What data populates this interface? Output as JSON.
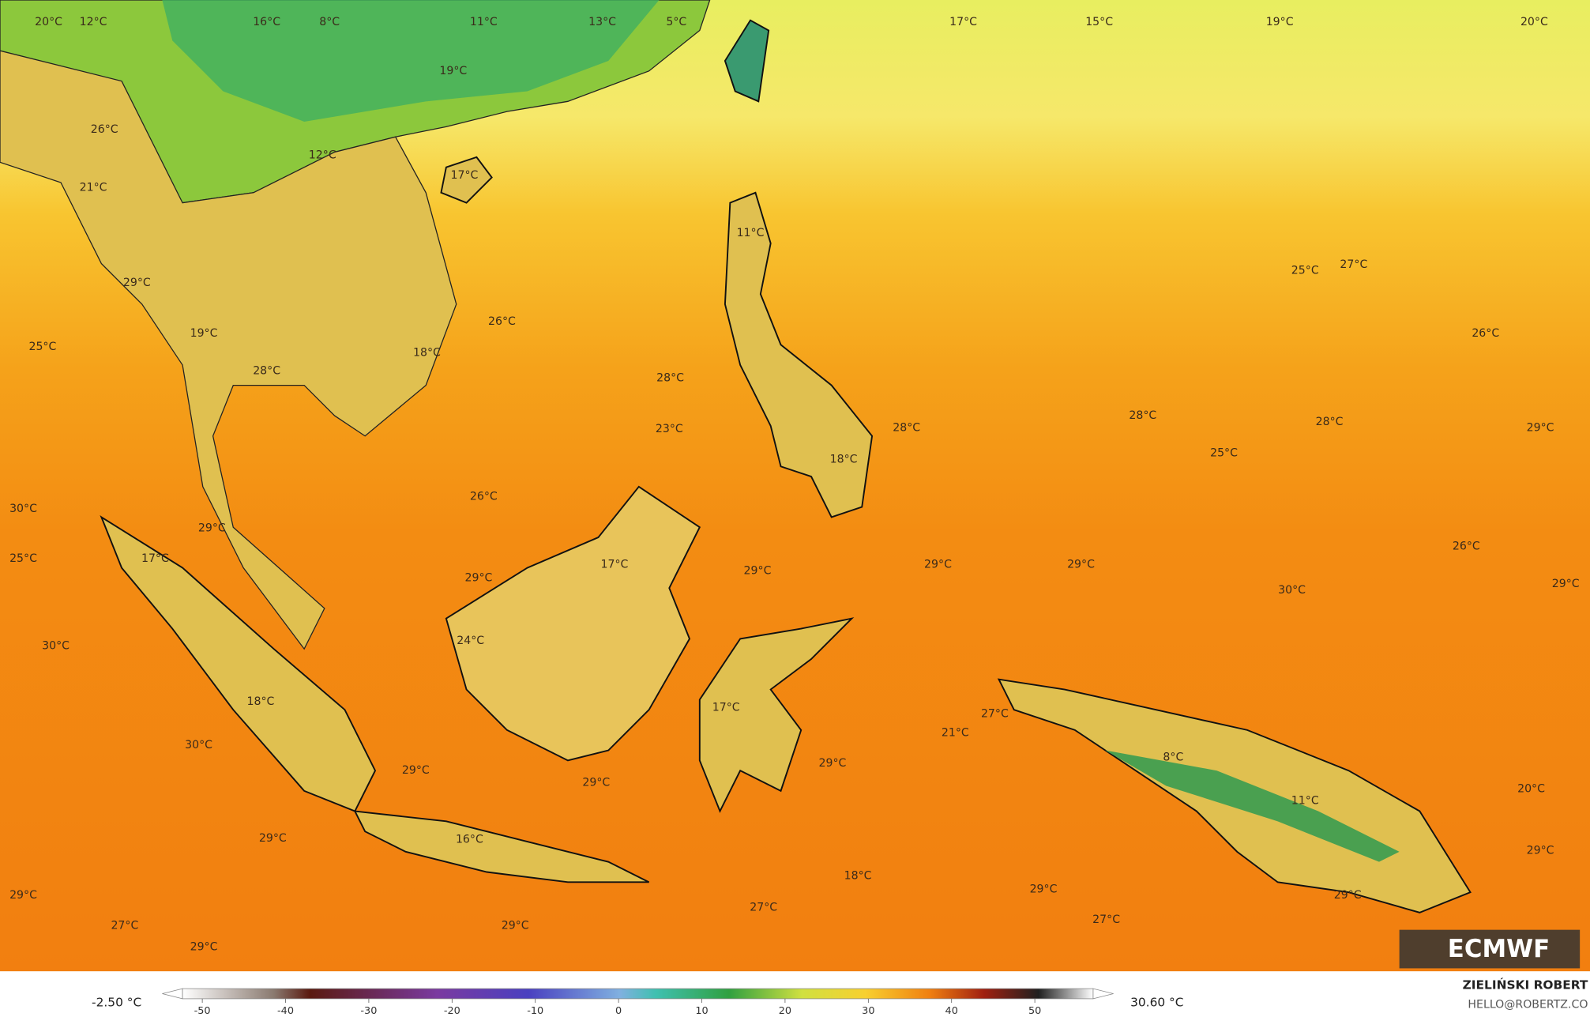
{
  "map": {
    "temperature_labels": [
      "20°C",
      "12°C",
      "16°C",
      "8°C",
      "11°C",
      "13°C",
      "5°C",
      "17°C",
      "15°C",
      "19°C",
      "20°C",
      "19°C",
      "26°C",
      "12°C",
      "17°C",
      "21°C",
      "11°C",
      "25°C",
      "27°C",
      "29°C",
      "26°C",
      "26°C",
      "25°C",
      "19°C",
      "18°C",
      "28°C",
      "28°C",
      "28°C",
      "28°C",
      "29°C",
      "23°C",
      "28°C",
      "18°C",
      "25°C",
      "26°C",
      "30°C",
      "29°C",
      "25°C",
      "17°C",
      "17°C",
      "29°C",
      "29°C",
      "29°C",
      "26°C",
      "29°C",
      "30°C",
      "29°C",
      "24°C",
      "30°C",
      "18°C",
      "17°C",
      "27°C",
      "21°C",
      "30°C",
      "8°C",
      "29°C",
      "29°C",
      "29°C",
      "20°C",
      "11°C",
      "29°C",
      "16°C",
      "29°C",
      "18°C",
      "29°C",
      "29°C",
      "29°C",
      "27°C",
      "27°C",
      "27°C",
      "29°C",
      "29°C"
    ],
    "colorbar": {
      "min_label": "-2.50 °C",
      "max_label": "30.60 °C",
      "ticks": [
        -50,
        -40,
        -30,
        -20,
        -10,
        0,
        10,
        20,
        30,
        40,
        50
      ]
    },
    "credit": {
      "author": "ZIELIŃSKI ROBERT",
      "email": "HELLO@ROBERTZ.CO"
    },
    "logo": "ECMWF"
  }
}
